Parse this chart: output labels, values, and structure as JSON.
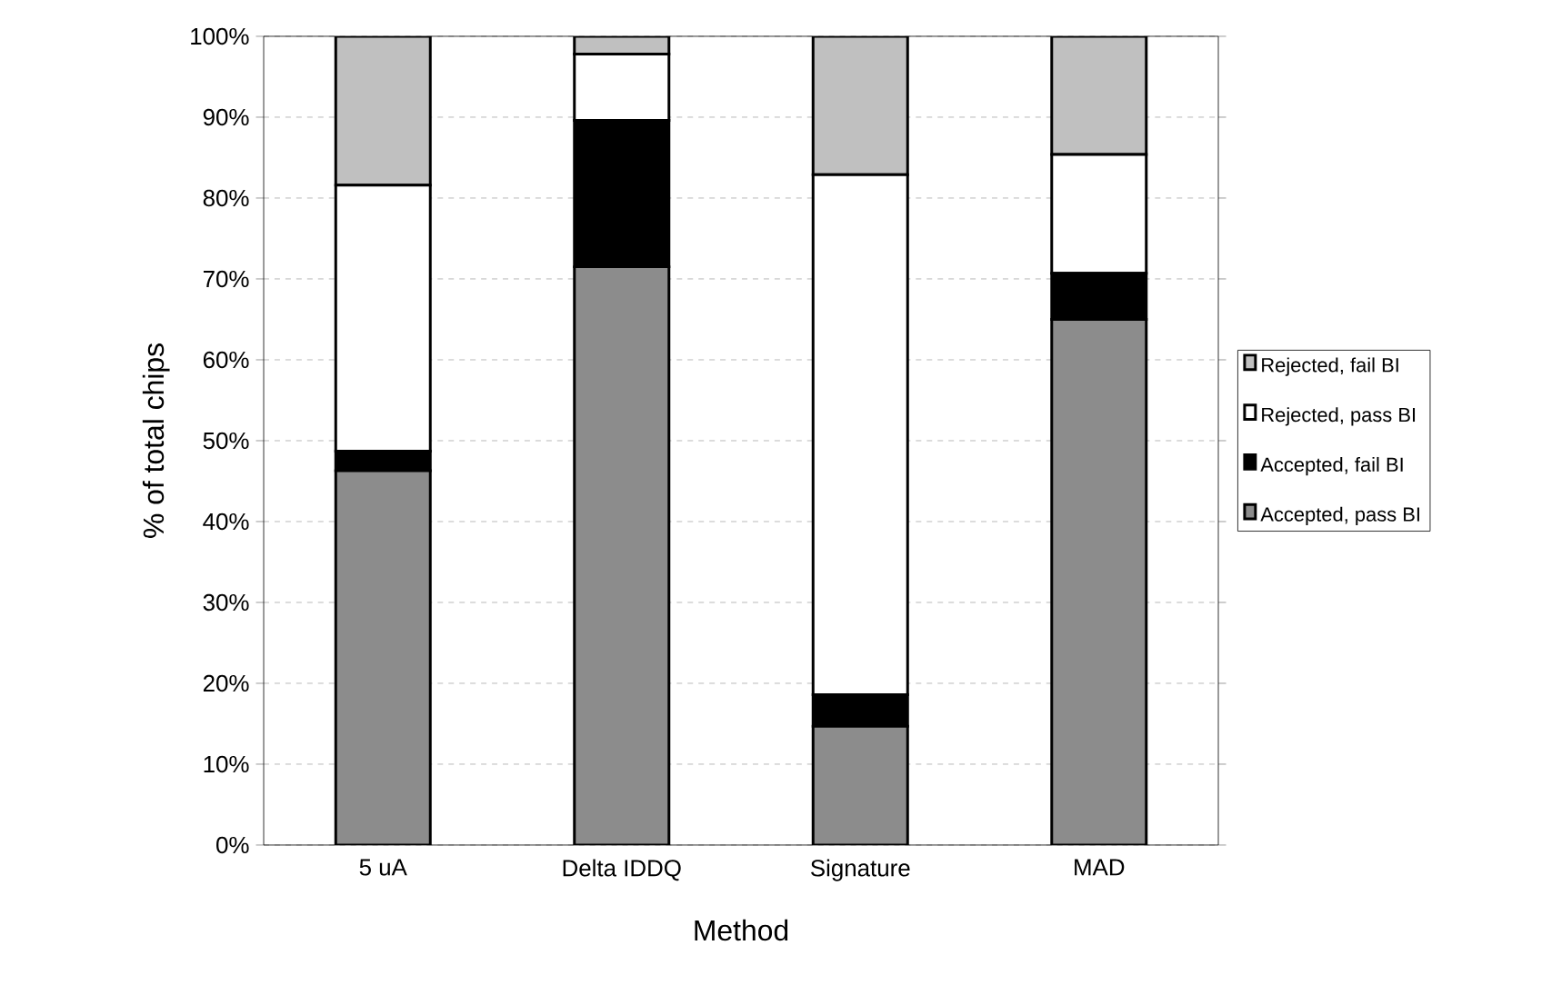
{
  "chart_data": {
    "type": "bar",
    "stacked": true,
    "xlabel": "Method",
    "ylabel": "%  of total chips",
    "categories": [
      "5 uA",
      "Delta IDDQ",
      "Signature",
      "MAD"
    ],
    "series": [
      {
        "name": "Accepted, pass BI",
        "color": "#8c8c8c",
        "values": [
          46.3,
          71.5,
          14.7,
          65.0
        ]
      },
      {
        "name": "Accepted, fail BI",
        "color": "#000000",
        "values": [
          2.4,
          18.1,
          3.9,
          5.7
        ]
      },
      {
        "name": "Rejected, pass BI",
        "color": "#ffffff",
        "values": [
          32.9,
          8.2,
          64.3,
          14.7
        ]
      },
      {
        "name": "Rejected, fail BI",
        "color": "#c0c0c0",
        "values": [
          18.4,
          2.2,
          17.1,
          14.6
        ]
      }
    ],
    "ylim": [
      0,
      100
    ],
    "yticks": [
      {
        "value": 0,
        "label": "0%"
      },
      {
        "value": 10,
        "label": "10%"
      },
      {
        "value": 20,
        "label": "20%"
      },
      {
        "value": 30,
        "label": "30%"
      },
      {
        "value": 40,
        "label": "40%"
      },
      {
        "value": 50,
        "label": "50%"
      },
      {
        "value": 60,
        "label": "60%"
      },
      {
        "value": 70,
        "label": "70%"
      },
      {
        "value": 80,
        "label": "80%"
      },
      {
        "value": 90,
        "label": "90%"
      },
      {
        "value": 100,
        "label": "100%"
      }
    ],
    "grid": "y",
    "legend": "right"
  }
}
